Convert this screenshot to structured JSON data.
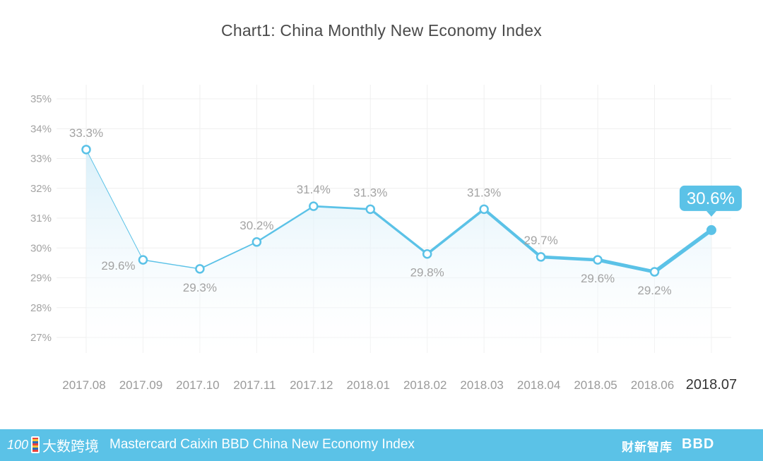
{
  "chart_data": {
    "type": "line",
    "title": "Chart1: China Monthly New Economy Index",
    "categories": [
      "2017.08",
      "2017.09",
      "2017.10",
      "2017.11",
      "2017.12",
      "2018.01",
      "2018.02",
      "2018.03",
      "2018.04",
      "2018.05",
      "2018.06",
      "2018.07"
    ],
    "values": [
      33.3,
      29.6,
      29.3,
      30.2,
      31.4,
      31.3,
      29.8,
      31.3,
      29.7,
      29.6,
      29.2,
      30.6
    ],
    "data_labels": [
      "33.3%",
      "29.6%",
      "29.3%",
      "30.2%",
      "31.4%",
      "31.3%",
      "29.8%",
      "31.3%",
      "29.7%",
      "29.6%",
      "29.2%",
      "30.6%"
    ],
    "y_ticks": [
      "27%",
      "28%",
      "29%",
      "30%",
      "31%",
      "32%",
      "33%",
      "34%",
      "35%"
    ],
    "ylim": [
      27,
      35
    ],
    "grid": true,
    "colors": {
      "line": "#5bc2e7",
      "area": "#e3f4fb",
      "grid": "#efefef",
      "callout": "#5bc2e7"
    }
  },
  "footer": {
    "title": "Mastercard Caixin BBD China New Economy Index",
    "logo_left_num": "100",
    "logo_left_cn": "大数跨境",
    "logo_right_cn": "财新智库",
    "logo_right_en": "BBD"
  }
}
